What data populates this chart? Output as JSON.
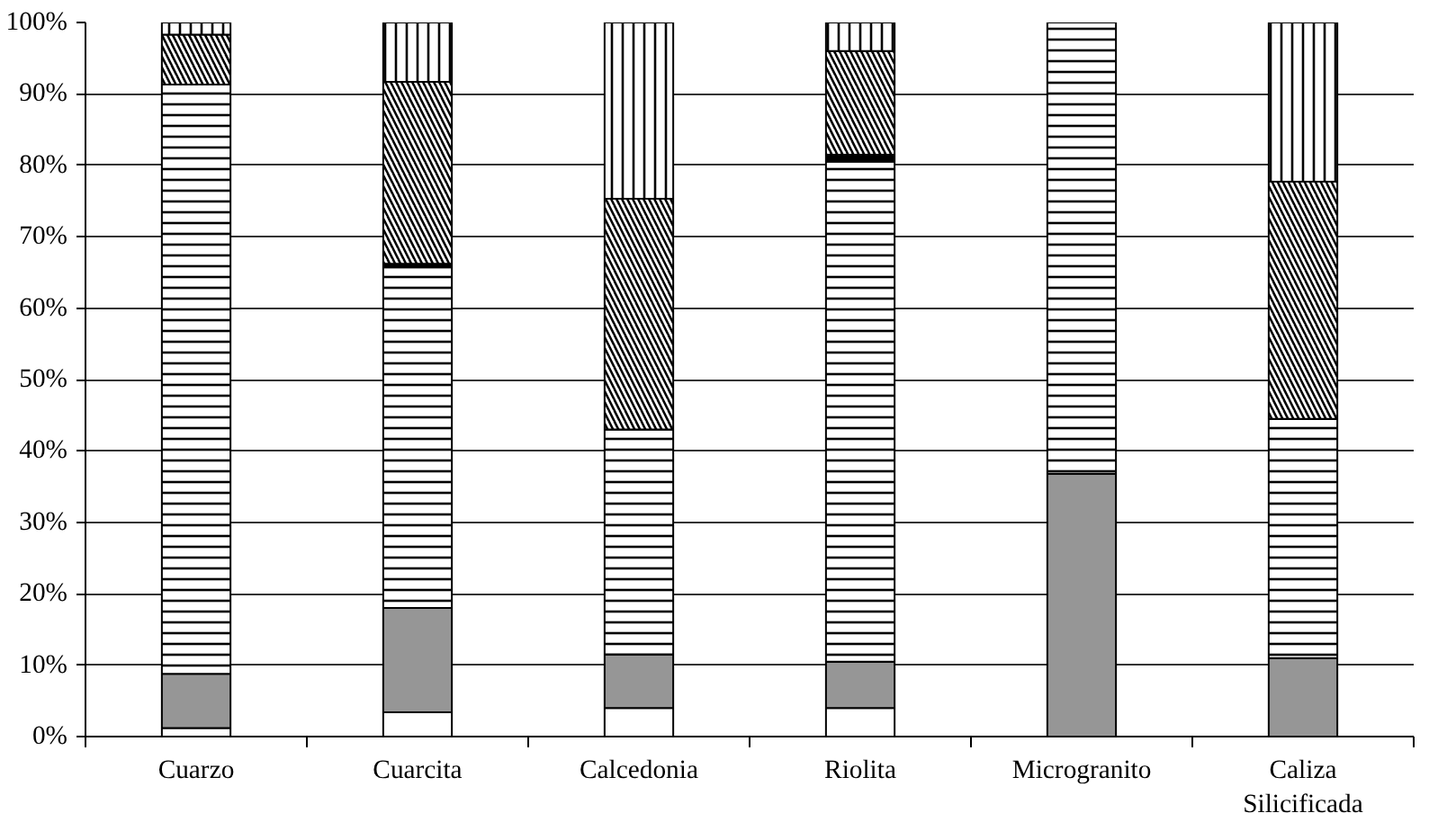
{
  "chart_data": {
    "type": "bar",
    "stacked": true,
    "categories": [
      "Cuarzo",
      "Cuarcita",
      "Calcedonia",
      "Riolita",
      "Microgranito",
      "Caliza\nSilicificada"
    ],
    "series": [
      {
        "color": "#ffffff",
        "values": [
          1.2,
          3.4,
          4,
          4,
          0,
          0
        ]
      },
      {
        "color": "#969696",
        "values": [
          7.6,
          14.6,
          7.5,
          6.5,
          36.8,
          11
        ]
      },
      {
        "color": "#ffffff",
        "values": [
          82.5,
          47.7,
          31.5,
          70,
          63.2,
          33.5
        ]
      },
      {
        "color": "#000000",
        "values": [
          0,
          0.5,
          0,
          1,
          0,
          0
        ]
      },
      {
        "color": "#ffffff",
        "values": [
          7,
          25.5,
          32.3,
          14.5,
          0,
          33.2
        ]
      },
      {
        "color": "#ffffff",
        "values": [
          1.7,
          8.5,
          24.7,
          4,
          0,
          22.3
        ]
      }
    ],
    "ylim": [
      0,
      100
    ],
    "yticks": [
      {
        "value": 0,
        "label": "0%"
      },
      {
        "value": 10,
        "label": "10%"
      },
      {
        "value": 20,
        "label": "20%"
      },
      {
        "value": 30,
        "label": "30%"
      },
      {
        "value": 40,
        "label": "40%"
      },
      {
        "value": 50,
        "label": "50%"
      },
      {
        "value": 60,
        "label": "60%"
      },
      {
        "value": 70,
        "label": "70%"
      },
      {
        "value": 80,
        "label": "80%"
      },
      {
        "value": 90,
        "label": "90%"
      },
      {
        "value": 100,
        "label": "100%"
      }
    ],
    "grid": "y"
  }
}
